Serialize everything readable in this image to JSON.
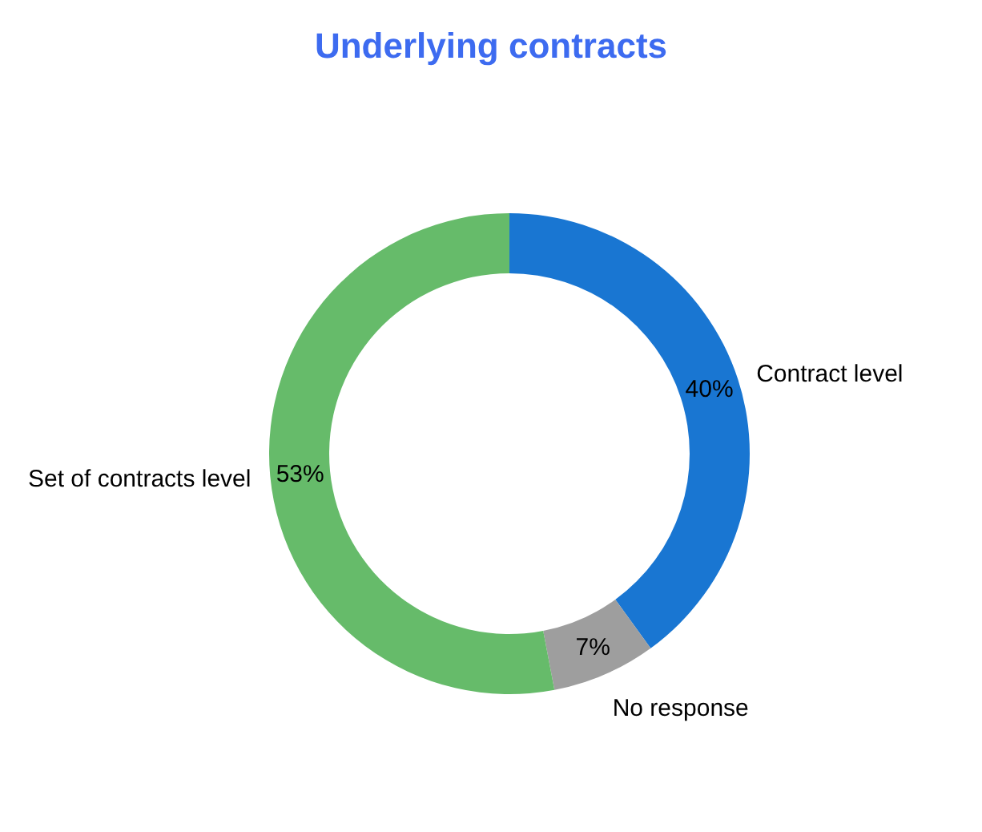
{
  "chart_data": {
    "type": "donut",
    "title": "Underlying contracts",
    "categories": [
      "Contract level",
      "No response",
      "Set of contracts level"
    ],
    "values": [
      40,
      7,
      53
    ],
    "colors": [
      "#1976d2",
      "#9e9e9e",
      "#66bb6a"
    ],
    "value_labels": [
      "40%",
      "7%",
      "53%"
    ]
  }
}
